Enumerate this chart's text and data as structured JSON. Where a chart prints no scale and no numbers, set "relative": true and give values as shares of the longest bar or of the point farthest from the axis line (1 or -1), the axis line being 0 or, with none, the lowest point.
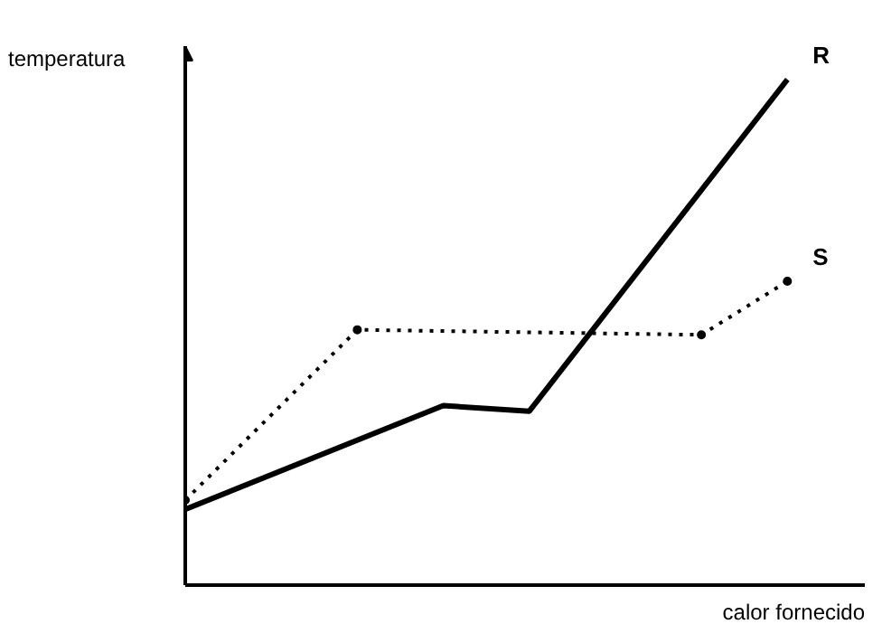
{
  "chart_data": {
    "type": "line",
    "relative": true,
    "xlabel": "calor fornecido",
    "ylabel": "temperatura",
    "categories": [
      null,
      null,
      null,
      null,
      null,
      null,
      null,
      null
    ],
    "grid": false,
    "legend": false,
    "series": [
      {
        "name": "R",
        "color": "#000000",
        "values": [
          0.15,
          null,
          null,
          0.355,
          0.344,
          null,
          null,
          1
        ],
        "line_style": "solid",
        "marker": "none"
      },
      {
        "name": "S",
        "color": "#000000",
        "values": [
          0.168,
          null,
          0.505,
          null,
          null,
          null,
          0.495,
          0.601
        ],
        "line_style": "dotted",
        "marker": "circle"
      }
    ]
  }
}
